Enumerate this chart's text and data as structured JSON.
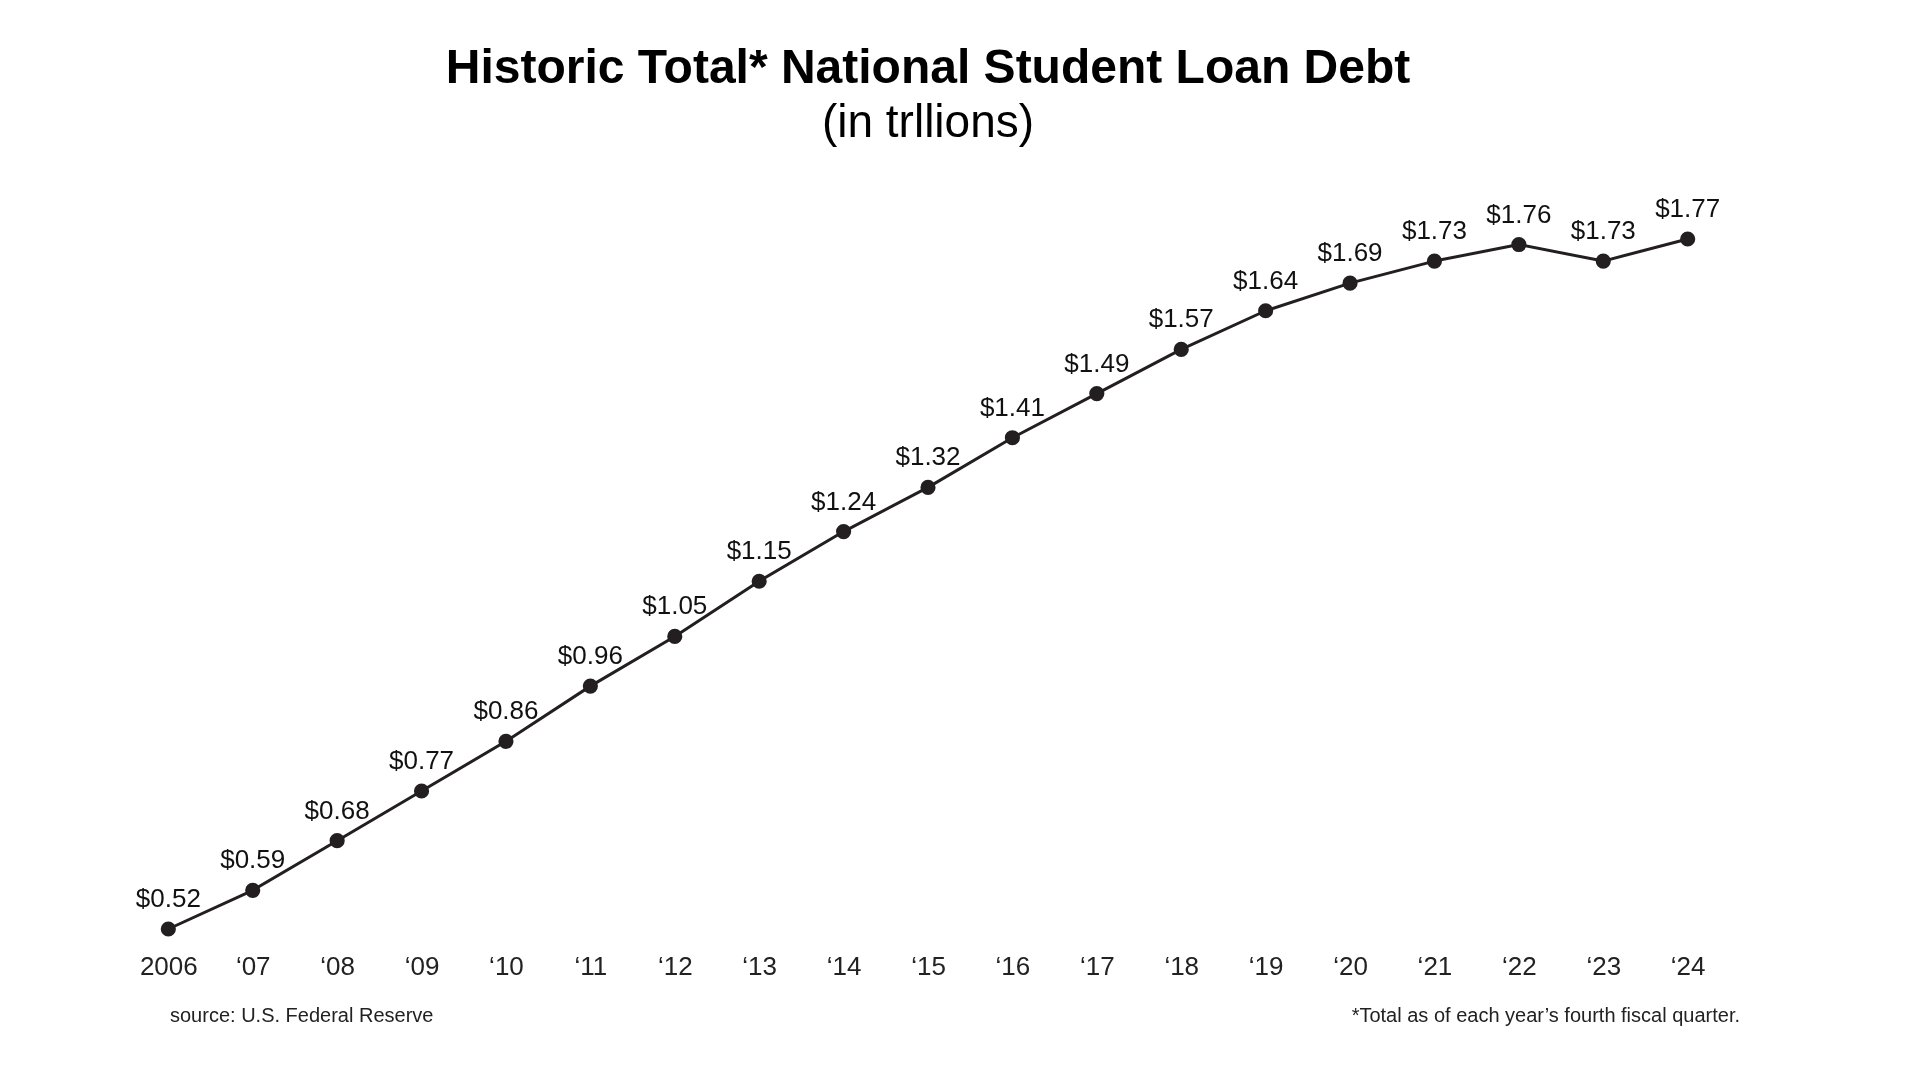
{
  "chart_data": {
    "type": "line",
    "title": "Historic Total* National Student Loan Debt",
    "subtitle": "(in trllions)",
    "categories": [
      "2006",
      "‘07",
      "‘08",
      "‘09",
      "‘10",
      "‘11",
      "‘12",
      "‘13",
      "‘14",
      "‘15",
      "‘16",
      "‘17",
      "‘18",
      "‘19",
      "‘20",
      "‘21",
      "‘22",
      "‘23",
      "‘24"
    ],
    "series": [
      {
        "color": "#231f20",
        "values": [
          0.52,
          0.59,
          0.68,
          0.77,
          0.86,
          0.96,
          1.05,
          1.15,
          1.24,
          1.32,
          1.41,
          1.49,
          1.57,
          1.64,
          1.69,
          1.73,
          1.76,
          1.73,
          1.77
        ],
        "value_labels": [
          "$0.52",
          "$0.59",
          "$0.68",
          "$0.77",
          "$0.86",
          "$0.96",
          "$1.05",
          "$1.15",
          "$1.24",
          "$1.32",
          "$1.41",
          "$1.49",
          "$1.57",
          "$1.64",
          "$1.69",
          "$1.73",
          "$1.76",
          "$1.73",
          "$1.77"
        ]
      }
    ],
    "marker": "circle",
    "line_style": "solid",
    "annotations": [
      "source: U.S. Federal Reserve",
      "*Total as of each year’s fourth fiscal quarter."
    ]
  }
}
